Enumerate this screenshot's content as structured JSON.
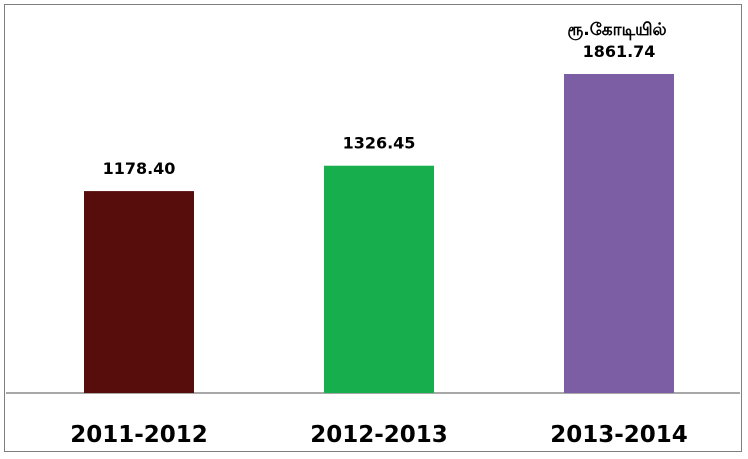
{
  "chart_data": {
    "type": "bar",
    "categories": [
      "2011-2012",
      "2012-2013",
      "2013-2014"
    ],
    "values": [
      1178.4,
      1326.45,
      1861.74
    ],
    "value_labels": [
      "1178.40",
      "1326.45",
      "1861.74"
    ],
    "unit_label": "ரூ.கோடியில்",
    "colors": [
      "#560d0b",
      "#17ae4d",
      "#7b5ea3"
    ],
    "ylim": [
      0,
      2000
    ],
    "grid": false,
    "legend": "none"
  }
}
